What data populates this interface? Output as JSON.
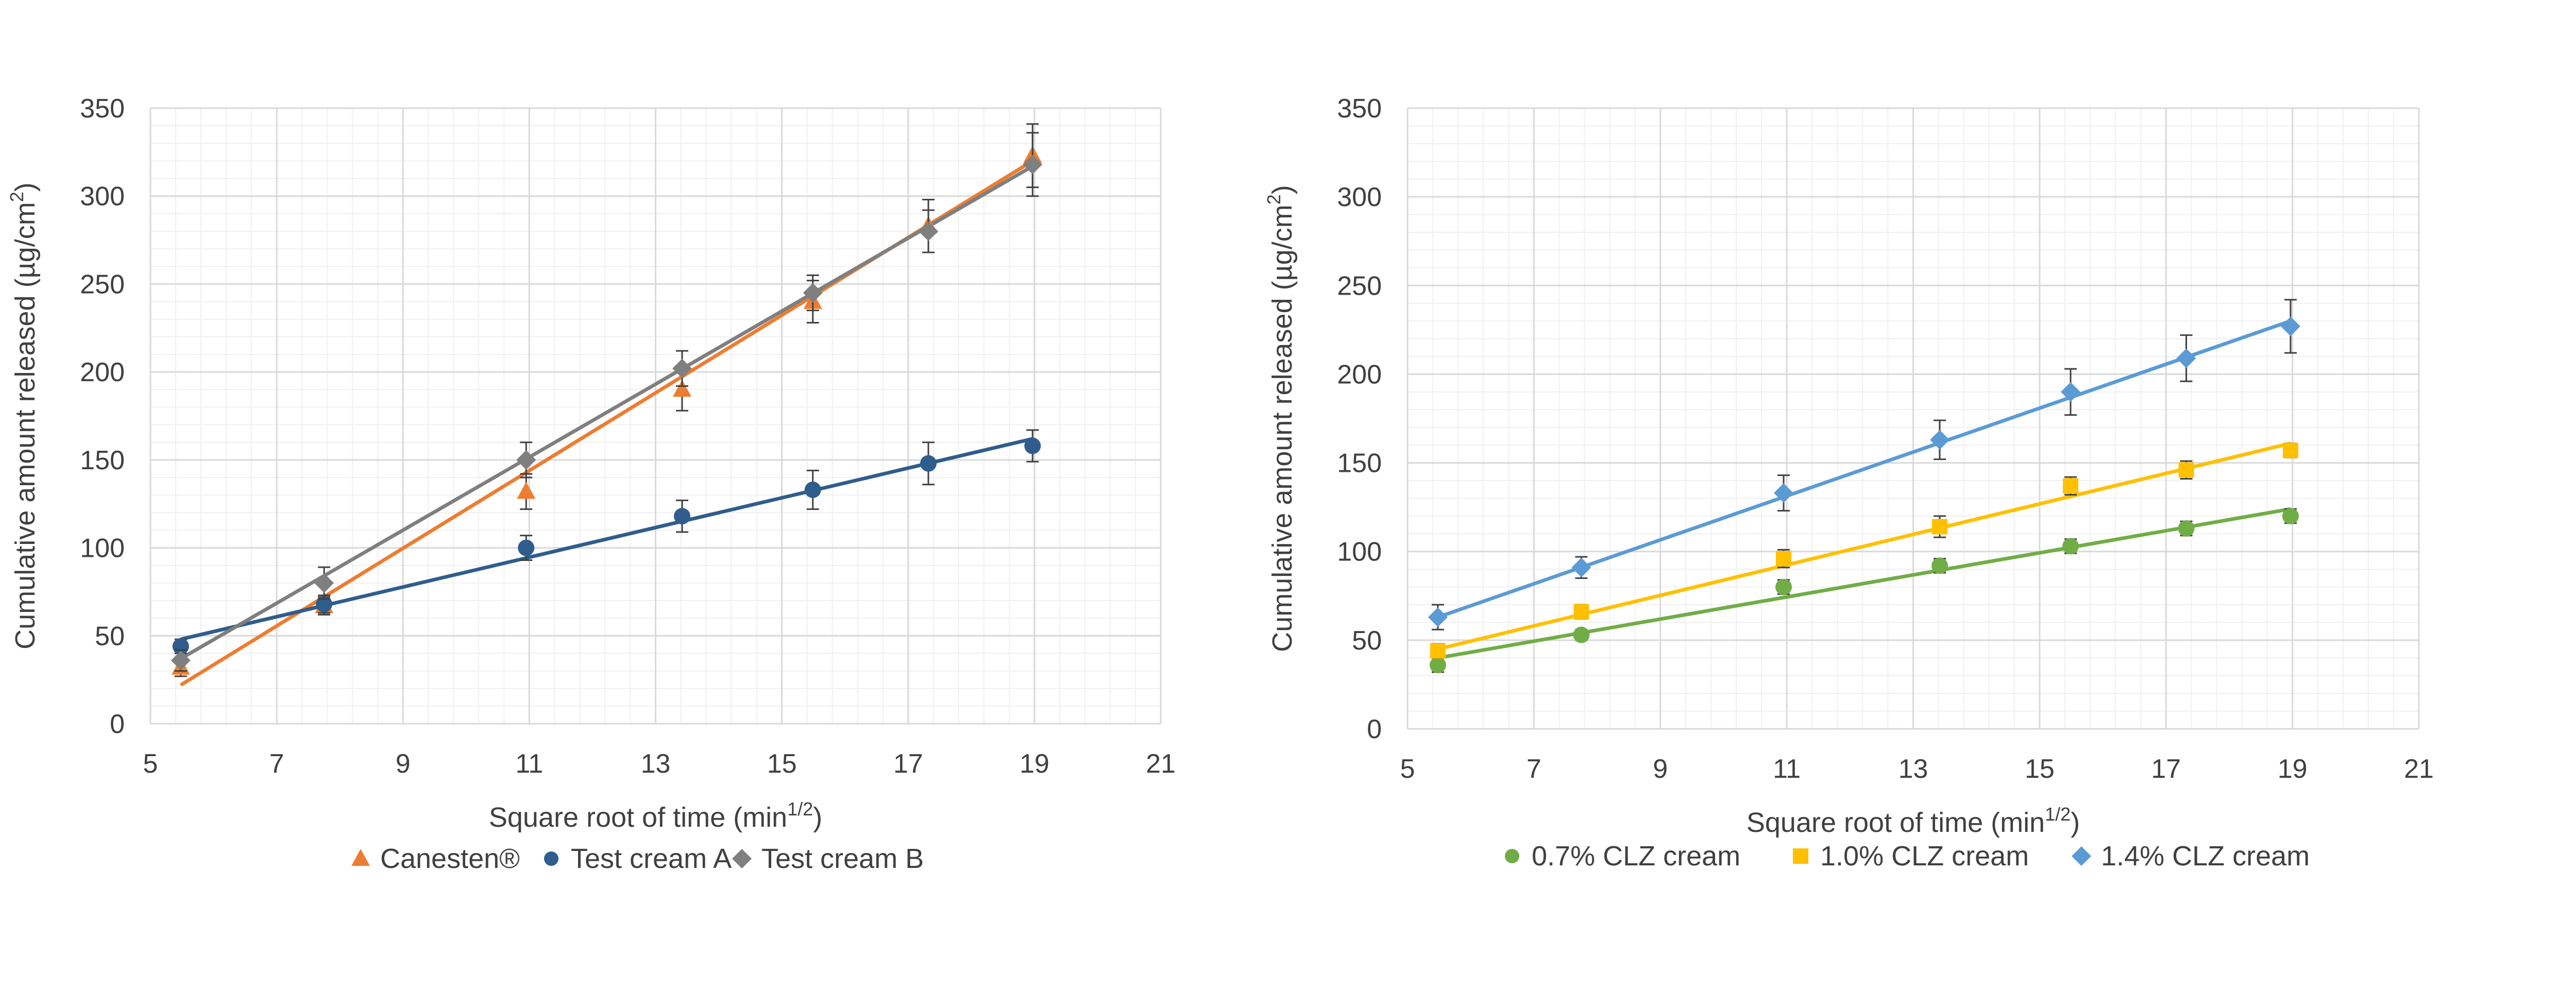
{
  "colors": {
    "canesten": "#ED7D31",
    "cream_a": "#2F5D8C",
    "cream_b": "#7F7F7F",
    "clz07": "#70AD47",
    "clz10": "#FFC000",
    "clz14": "#5B9BD5",
    "grid_major": "#D9D9D9",
    "grid_minor": "#F0F0F0",
    "error_bar": "#404040"
  },
  "chart_data": [
    {
      "type": "scatter",
      "xlabel_main": "Square root of time (min",
      "xlabel_sup": "1/2",
      "xlabel_end": ")",
      "ylabel_main": "Cumulative amount released (µg/cm",
      "ylabel_sup": "2",
      "ylabel_end": ")",
      "xlim": [
        5,
        21
      ],
      "ylim": [
        0,
        350
      ],
      "x_ticks": [
        "5",
        "7",
        "9",
        "11",
        "13",
        "15",
        "17",
        "19",
        "21"
      ],
      "y_ticks": [
        "0",
        "50",
        "100",
        "150",
        "200",
        "250",
        "300",
        "350"
      ],
      "grid": true,
      "legend_position": "bottom",
      "series": [
        {
          "name": "Canesten®",
          "marker": "triangle",
          "color_key": "canesten",
          "x": [
            5.48,
            7.75,
            10.95,
            13.42,
            15.49,
            17.32,
            18.97
          ],
          "y": [
            32,
            67,
            132,
            190,
            240,
            283,
            323
          ],
          "err": [
            5,
            5,
            10,
            12,
            12,
            15,
            18
          ],
          "fit": [
            [
              5.48,
              22
            ],
            [
              18.97,
              320
            ]
          ]
        },
        {
          "name": "Test cream A",
          "marker": "circle",
          "color_key": "cream_a",
          "x": [
            5.48,
            7.75,
            10.95,
            13.42,
            15.49,
            17.32,
            18.97
          ],
          "y": [
            44,
            68,
            100,
            118,
            133,
            148,
            158
          ],
          "err": [
            4,
            5,
            7,
            9,
            11,
            12,
            9
          ],
          "fit": [
            [
              5.48,
              48
            ],
            [
              18.97,
              162
            ]
          ]
        },
        {
          "name": "Test cream B",
          "marker": "diamond",
          "color_key": "cream_b",
          "x": [
            5.48,
            7.75,
            10.95,
            13.42,
            15.49,
            17.32,
            18.97
          ],
          "y": [
            36,
            80,
            150,
            202,
            245,
            280,
            318
          ],
          "err": [
            6,
            9,
            10,
            10,
            10,
            12,
            18
          ],
          "fit": [
            [
              5.48,
              37
            ],
            [
              18.97,
              317
            ]
          ]
        }
      ]
    },
    {
      "type": "scatter",
      "xlabel_main": "Square root of time (min",
      "xlabel_sup": "1/2",
      "xlabel_end": ")",
      "ylabel_main": "Cumulative amount released (µg/cm",
      "ylabel_sup": "2",
      "ylabel_end": ")",
      "xlim": [
        5,
        21
      ],
      "ylim": [
        0,
        350
      ],
      "x_ticks": [
        "5",
        "7",
        "9",
        "11",
        "13",
        "15",
        "17",
        "19",
        "21"
      ],
      "y_ticks": [
        "0",
        "50",
        "100",
        "150",
        "200",
        "250",
        "300",
        "350"
      ],
      "grid": true,
      "legend_position": "bottom",
      "series": [
        {
          "name": "0.7% CLZ cream",
          "marker": "circle",
          "color_key": "clz07",
          "x": [
            5.48,
            7.75,
            10.95,
            13.42,
            15.49,
            17.32,
            18.97
          ],
          "y": [
            36,
            53,
            80,
            92,
            103,
            113,
            120
          ],
          "err": [
            4,
            3,
            4,
            4,
            4,
            4,
            4
          ],
          "fit": [
            [
              5.48,
              40
            ],
            [
              18.97,
              124
            ]
          ]
        },
        {
          "name": "1.0% CLZ cream",
          "marker": "square",
          "color_key": "clz10",
          "x": [
            5.48,
            7.75,
            10.95,
            13.42,
            15.49,
            17.32,
            18.97
          ],
          "y": [
            44,
            66,
            96,
            114,
            137,
            146,
            157
          ],
          "err": [
            4,
            4,
            5,
            6,
            5,
            5,
            4
          ],
          "fit": [
            [
              5.48,
              45
            ],
            [
              18.97,
              161
            ]
          ]
        },
        {
          "name": "1.4% CLZ cream",
          "marker": "diamond",
          "color_key": "clz14",
          "x": [
            5.48,
            7.75,
            10.95,
            13.42,
            15.49,
            17.32,
            18.97
          ],
          "y": [
            63,
            91,
            133,
            163,
            190,
            209,
            227
          ],
          "err": [
            7,
            6,
            10,
            11,
            13,
            13,
            15
          ],
          "fit": [
            [
              5.48,
              63
            ],
            [
              18.97,
              230
            ]
          ]
        }
      ]
    }
  ]
}
